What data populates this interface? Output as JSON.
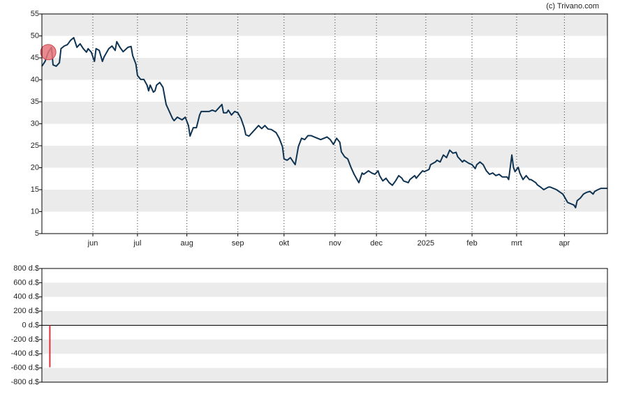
{
  "credit": "(c) Trivano.com",
  "chart_data": [
    {
      "type": "line",
      "color": "#0e3352",
      "xlim": [
        0,
        355
      ],
      "xticks": [
        {
          "value": 32,
          "label": "jun"
        },
        {
          "value": 60,
          "label": "jul"
        },
        {
          "value": 91,
          "label": "aug"
        },
        {
          "value": 123,
          "label": "sep"
        },
        {
          "value": 152,
          "label": "okt"
        },
        {
          "value": 184,
          "label": "nov"
        },
        {
          "value": 210,
          "label": "dec"
        },
        {
          "value": 241,
          "label": "2025"
        },
        {
          "value": 270,
          "label": "feb"
        },
        {
          "value": 298,
          "label": "mrt"
        },
        {
          "value": 328,
          "label": "apr"
        }
      ],
      "ylim": [
        5,
        55
      ],
      "yticks": [
        5,
        10,
        15,
        20,
        25,
        30,
        35,
        40,
        45,
        50,
        55
      ],
      "stripes": true,
      "x": [
        0,
        2,
        4,
        6,
        7,
        9,
        11,
        12,
        14,
        16,
        18,
        20,
        22,
        24,
        26,
        28,
        29,
        31,
        33,
        34,
        36,
        38,
        39,
        42,
        44,
        46,
        47,
        49,
        51,
        54,
        56,
        57,
        59,
        60,
        62,
        64,
        66,
        67,
        68,
        70,
        71,
        72,
        74,
        76,
        78,
        80,
        82,
        83,
        85,
        88,
        90,
        92,
        93,
        95,
        97,
        99,
        100,
        102,
        105,
        107,
        109,
        111,
        113,
        114,
        116,
        117,
        119,
        121,
        123,
        125,
        127,
        128,
        130,
        132,
        134,
        136,
        138,
        140,
        142,
        144,
        147,
        149,
        151,
        152,
        154,
        156,
        158,
        159,
        161,
        163,
        165,
        167,
        169,
        171,
        173,
        175,
        177,
        179,
        181,
        183,
        185,
        187,
        188,
        190,
        192,
        194,
        196,
        198,
        199,
        201,
        202,
        205,
        207,
        209,
        211,
        212,
        214,
        216,
        218,
        220,
        222,
        224,
        226,
        227,
        230,
        231,
        234,
        235,
        237,
        239,
        240,
        243,
        244,
        247,
        248,
        250,
        252,
        254,
        256,
        258,
        260,
        261,
        264,
        265,
        268,
        270,
        272,
        273,
        275,
        277,
        279,
        281,
        283,
        285,
        287,
        289,
        292,
        293,
        295,
        296,
        297,
        299,
        300,
        302,
        304,
        306,
        307,
        310,
        311,
        313,
        315,
        318,
        319,
        321,
        323,
        325,
        327,
        328,
        330,
        332,
        334,
        335,
        336,
        338,
        340,
        342,
        344,
        346,
        347,
        349,
        351,
        355
      ],
      "values": [
        43.1,
        44.2,
        46.3,
        47.4,
        43.4,
        43.1,
        43.9,
        47.1,
        47.7,
        48,
        49,
        49.6,
        47.4,
        48.2,
        47.1,
        46.3,
        47.1,
        46.3,
        44.2,
        47.1,
        46.7,
        44.2,
        45.2,
        47.1,
        47.7,
        46.7,
        48.7,
        47.4,
        46.4,
        47.4,
        47.6,
        45.5,
        43.6,
        41,
        40.1,
        40.1,
        38.8,
        37.5,
        38.8,
        37.2,
        37.5,
        38.8,
        39.4,
        38.3,
        34.4,
        32.8,
        31.2,
        30.7,
        31.5,
        30.9,
        31.5,
        29.6,
        27.2,
        29.1,
        29.1,
        32,
        32.8,
        32.8,
        32.8,
        33.1,
        32.8,
        33.6,
        34.4,
        32.5,
        32.5,
        33.1,
        32,
        32.8,
        32.5,
        31.2,
        29.1,
        27.5,
        27.2,
        28,
        28.8,
        29.6,
        28.9,
        29.6,
        28.8,
        28.7,
        28,
        26.7,
        24.8,
        22,
        21.7,
        22.3,
        21.2,
        20.7,
        24.8,
        26.7,
        26.4,
        27.3,
        27.3,
        27,
        26.7,
        26.4,
        26.7,
        27,
        26.4,
        25.3,
        26.7,
        25.8,
        23.6,
        22.5,
        22,
        20.1,
        18.5,
        17.2,
        16.6,
        18.8,
        18.5,
        19.3,
        18.8,
        18.5,
        19.3,
        18.2,
        17,
        17.6,
        16.6,
        16,
        17,
        18.2,
        17.6,
        17,
        16.6,
        17.3,
        18.2,
        17.6,
        18.5,
        19.3,
        19.1,
        19.6,
        20.7,
        21.3,
        21.7,
        21.3,
        22.9,
        22.3,
        24,
        23.3,
        23.5,
        22.5,
        21.3,
        21.7,
        21,
        20.7,
        19.8,
        20.7,
        21.3,
        20.7,
        19.3,
        18.5,
        18.8,
        18.2,
        18.5,
        17.9,
        17.9,
        17.3,
        22.9,
        20.1,
        19.1,
        20.1,
        18.8,
        17.3,
        18.2,
        17.3,
        17.3,
        16.6,
        16.1,
        15.6,
        15,
        15.6,
        15.6,
        15.3,
        15,
        14.5,
        14,
        13.4,
        12.1,
        11.8,
        11.5,
        10.9,
        12.5,
        13.1,
        14,
        14.4,
        14.6,
        14,
        14.6,
        15,
        15.3,
        15.3
      ],
      "highlight": {
        "x": 4,
        "value": 46.3,
        "color": "#e8767a"
      }
    },
    {
      "type": "bar",
      "color": "#e0303a",
      "xlim": [
        0,
        355
      ],
      "ylim": [
        -800,
        800
      ],
      "yticks": [
        {
          "value": -800,
          "label": "-800 d.$"
        },
        {
          "value": -600,
          "label": "-600 d.$"
        },
        {
          "value": -400,
          "label": "-400 d.$"
        },
        {
          "value": -200,
          "label": "-200 d.$"
        },
        {
          "value": 0,
          "label": "0 d.$"
        },
        {
          "value": 200,
          "label": "200 d.$"
        },
        {
          "value": 400,
          "label": "400 d.$"
        },
        {
          "value": 600,
          "label": "600 d.$"
        },
        {
          "value": 800,
          "label": "800 d.$"
        }
      ],
      "stripes": true,
      "x": [
        5
      ],
      "values": [
        -590
      ]
    }
  ]
}
